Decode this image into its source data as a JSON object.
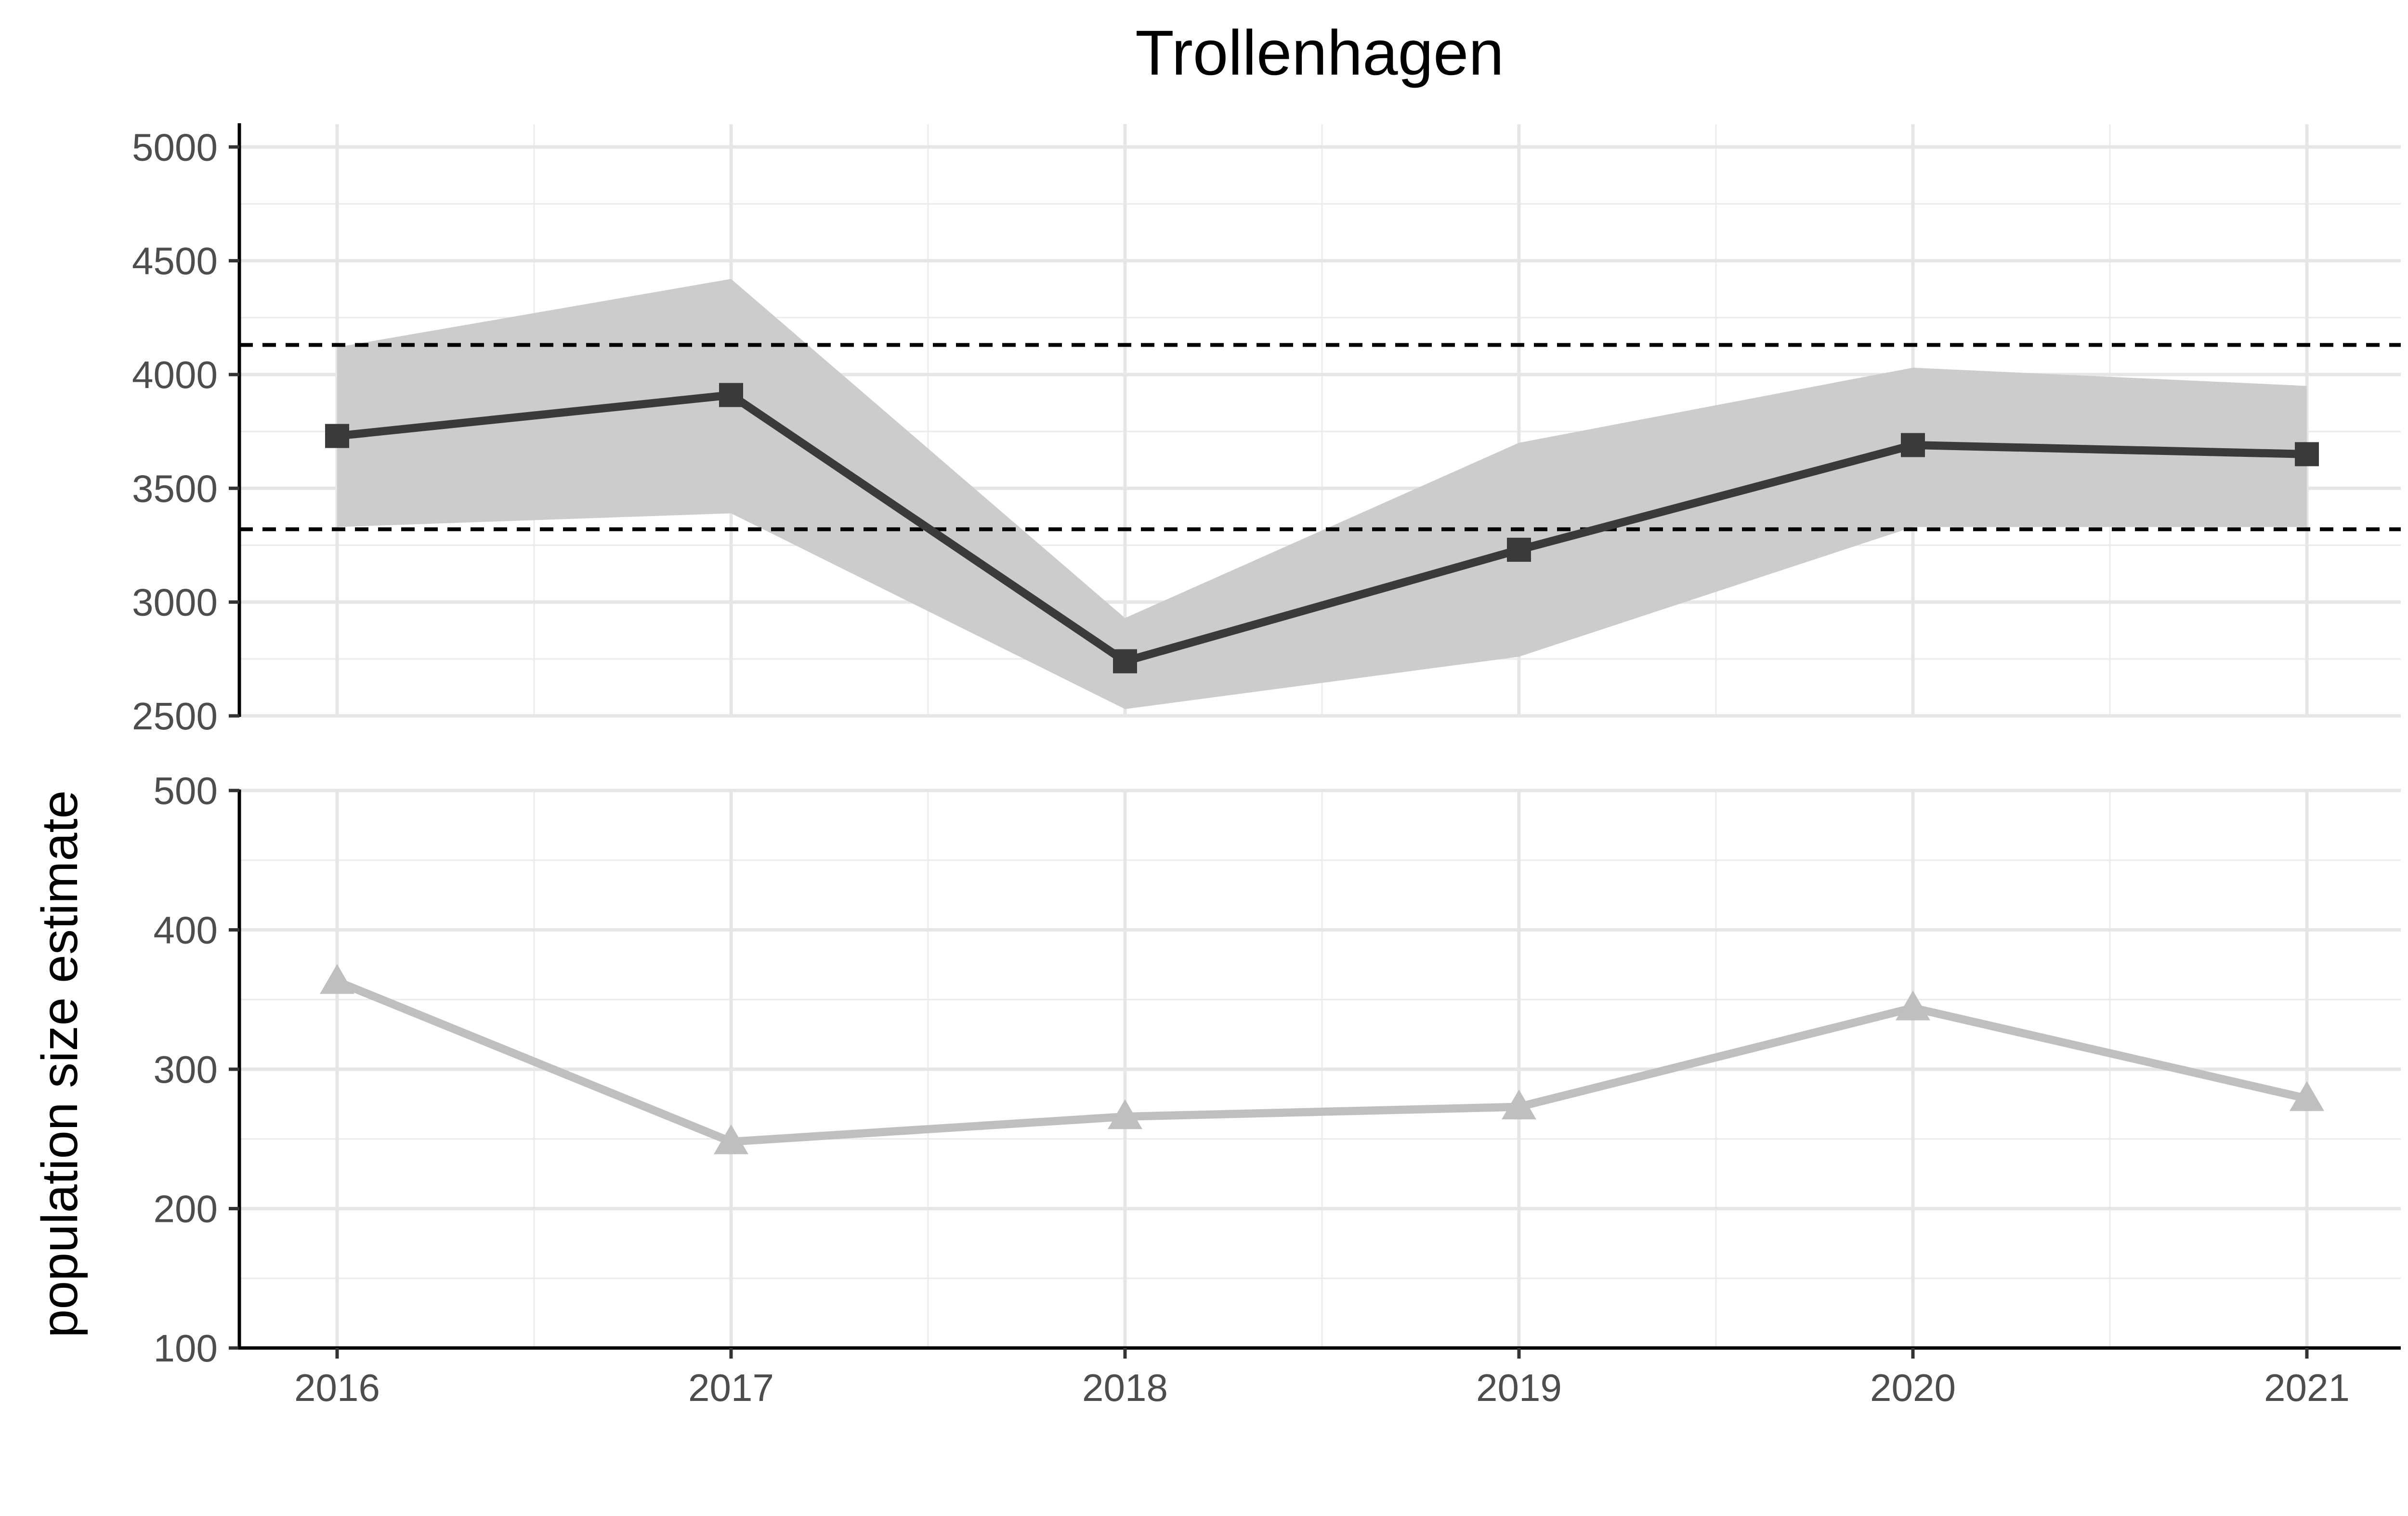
{
  "chart_data": {
    "type": "line",
    "title": "Trollenhagen",
    "xlabel": "",
    "ylabel": "population size estimate",
    "x": [
      2016,
      2017,
      2018,
      2019,
      2020,
      2021
    ],
    "x_ticks": [
      "2016",
      "2017",
      "2018",
      "2019",
      "2020",
      "2021"
    ],
    "grid": true,
    "legend": "none",
    "panels": [
      {
        "id": "upper",
        "ylim": [
          2500,
          5100
        ],
        "y_ticks": [
          2500,
          3000,
          3500,
          4000,
          4500,
          5000
        ],
        "series": [
          {
            "values": [
              3730,
              3910,
              2740,
              3230,
              3690,
              3650
            ],
            "lower": [
              3330,
              3390,
              2530,
              2760,
              3330,
              3330
            ],
            "upper": [
              4120,
              4420,
              2930,
              3700,
              4030,
              3950
            ],
            "color": "#3a3a3a",
            "band_color": "#cccccc",
            "marker": "square"
          }
        ],
        "reference_lines": [
          4130,
          3320
        ]
      },
      {
        "id": "lower",
        "ylim": [
          100,
          500
        ],
        "y_ticks": [
          100,
          200,
          300,
          400,
          500
        ],
        "series": [
          {
            "values": [
              363,
              248,
              266,
              273,
              344,
              279
            ],
            "color": "#bfbfbf",
            "marker": "triangle"
          }
        ]
      }
    ]
  }
}
